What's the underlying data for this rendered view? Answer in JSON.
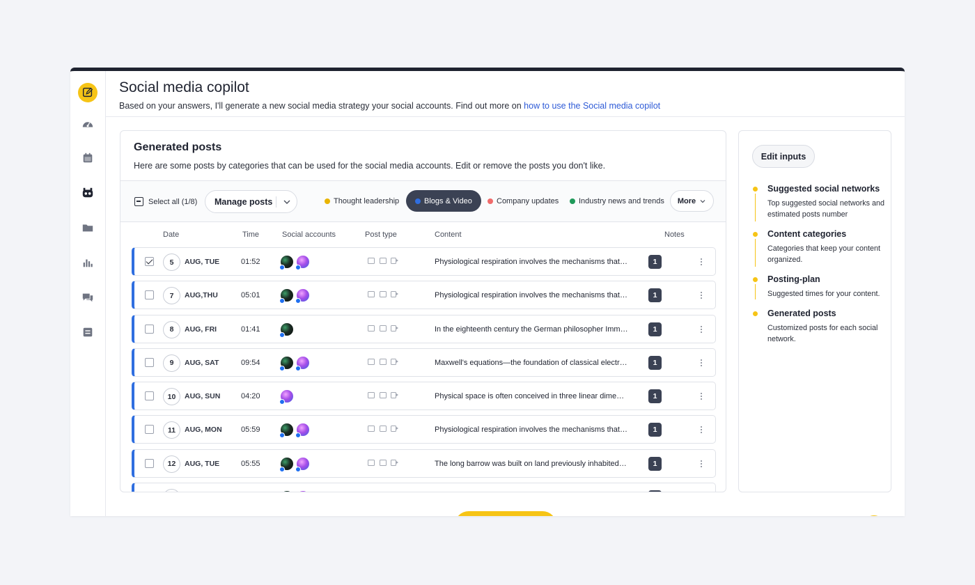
{
  "header": {
    "title": "Social media copilot",
    "subtitle": "Based on your answers, I'll generate a new social media strategy  your social accounts. Find out more on ",
    "link_text": "how to use the Social media copilot"
  },
  "nav": {
    "items": [
      {
        "icon": "edit-icon",
        "active": true
      },
      {
        "icon": "dashboard-icon",
        "active": false
      },
      {
        "icon": "calendar-icon",
        "active": false
      },
      {
        "icon": "robot-icon",
        "active": false
      },
      {
        "icon": "folder-icon",
        "active": false
      },
      {
        "icon": "bar-chart-icon",
        "active": false
      },
      {
        "icon": "chat-icon",
        "active": false
      },
      {
        "icon": "clipboard-icon",
        "active": false
      }
    ]
  },
  "panel": {
    "title": "Generated posts",
    "subtitle": "Here are some posts by categories that can be used for the social media accounts. Edit or remove the posts you don't like."
  },
  "toolbar": {
    "select_all_label": "Select all (1/8)",
    "manage_label": "Manage posts",
    "filters": [
      {
        "label": "Thought leadership",
        "color": "#e9b400",
        "active": false
      },
      {
        "label": "Blogs & Video",
        "color": "#2f6ee0",
        "active": true
      },
      {
        "label": "Company updates",
        "color": "#f06b6b",
        "active": false
      },
      {
        "label": "Industry news and trends",
        "color": "#1f9a5a",
        "active": false
      }
    ],
    "more_label": "More"
  },
  "columns": {
    "date": "Date",
    "time": "Time",
    "accounts": "Social accounts",
    "post_type": "Post type",
    "content": "Content",
    "notes": "Notes"
  },
  "rows": [
    {
      "checked": true,
      "day": "5",
      "date": "AUG, TUE",
      "time": "01:52",
      "accounts": [
        "dark",
        "purple"
      ],
      "content": "Physiological respiration involves the mechanisms that e...",
      "notes": "1"
    },
    {
      "checked": false,
      "day": "7",
      "date": "AUG,THU",
      "time": "05:01",
      "accounts": [
        "dark",
        "purple"
      ],
      "content": "Physiological respiration involves the mechanisms that e...",
      "notes": "1"
    },
    {
      "checked": false,
      "day": "8",
      "date": "AUG, FRI",
      "time": "01:41",
      "accounts": [
        "dark"
      ],
      "content": "In the eighteenth century the German philosopher Imma...",
      "notes": "1"
    },
    {
      "checked": false,
      "day": "9",
      "date": "AUG, SAT",
      "time": "09:54",
      "accounts": [
        "dark",
        "purple"
      ],
      "content": "Maxwell's equations—the foundation of classical electro...",
      "notes": "1"
    },
    {
      "checked": false,
      "day": "10",
      "date": "AUG, SUN",
      "time": "04:20",
      "accounts": [
        "purple"
      ],
      "content": "Physical space is often conceived in three linear dimensio...",
      "notes": "1"
    },
    {
      "checked": false,
      "day": "11",
      "date": "AUG, MON",
      "time": "05:59",
      "accounts": [
        "dark",
        "purple"
      ],
      "content": "Physiological respiration involves the mechanisms that e...",
      "notes": "1"
    },
    {
      "checked": false,
      "day": "12",
      "date": "AUG, TUE",
      "time": "05:55",
      "accounts": [
        "dark",
        "purple"
      ],
      "content": "The long barrow was built on land previously inhabited in...",
      "notes": "1"
    },
    {
      "checked": false,
      "day": "",
      "date": "",
      "time": "",
      "accounts": [
        "dark",
        "purple"
      ],
      "content": "",
      "notes": ""
    }
  ],
  "sidebar": {
    "edit_label": "Edit inputs",
    "steps": [
      {
        "title": "Suggested social networks",
        "desc": "Top suggested social networks and estimated posts number"
      },
      {
        "title": "Content categories",
        "desc": "Categories that keep your content organized."
      },
      {
        "title": "Posting-plan",
        "desc": "Suggested times for your content."
      },
      {
        "title": "Generated posts",
        "desc": "Customized posts for each social network."
      }
    ]
  },
  "colors": {
    "accent": "#f6c416",
    "row_border": "#2f6ee0",
    "dark_chip": "#3b4254"
  }
}
